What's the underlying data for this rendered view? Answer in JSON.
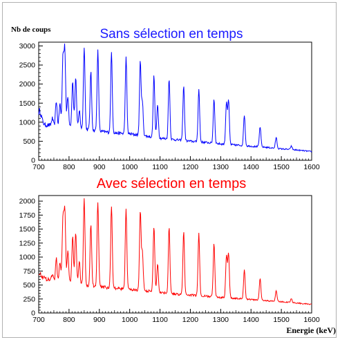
{
  "chart_data": [
    {
      "type": "line",
      "title": "Sans sélection en temps",
      "title_color": "#1a1aff",
      "ylabel": "Nb de coups",
      "xlabel": "",
      "xlim": [
        700,
        1600
      ],
      "ylim": [
        0,
        3100
      ],
      "x_ticks": [
        700,
        800,
        900,
        1000,
        1100,
        1200,
        1300,
        1400,
        1500,
        1600
      ],
      "y_ticks": [
        0,
        500,
        1000,
        1500,
        2000,
        2500,
        3000
      ],
      "grid": false,
      "series": [
        {
          "color": "#0000ff",
          "baseline": [
            [
              700,
              1150
            ],
            [
              720,
              930
            ],
            [
              760,
              900
            ],
            [
              800,
              920
            ],
            [
              850,
              820
            ],
            [
              900,
              760
            ],
            [
              950,
              720
            ],
            [
              1000,
              690
            ],
            [
              1050,
              640
            ],
            [
              1100,
              580
            ],
            [
              1150,
              540
            ],
            [
              1200,
              500
            ],
            [
              1250,
              470
            ],
            [
              1300,
              430
            ],
            [
              1350,
              400
            ],
            [
              1400,
              370
            ],
            [
              1450,
              340
            ],
            [
              1500,
              300
            ],
            [
              1550,
              270
            ],
            [
              1600,
              230
            ]
          ],
          "peaks": [
            [
              703,
              1300
            ],
            [
              709,
              1150
            ],
            [
              745,
              1100
            ],
            [
              758,
              1560
            ],
            [
              770,
              1480
            ],
            [
              780,
              2700
            ],
            [
              786,
              2900
            ],
            [
              796,
              1700
            ],
            [
              812,
              2050
            ],
            [
              822,
              2150
            ],
            [
              834,
              1300
            ],
            [
              850,
              3000
            ],
            [
              872,
              2300
            ],
            [
              895,
              2870
            ],
            [
              940,
              2830
            ],
            [
              988,
              2690
            ],
            [
              1035,
              2600
            ],
            [
              1042,
              1500
            ],
            [
              1080,
              2220
            ],
            [
              1092,
              1470
            ],
            [
              1130,
              2150
            ],
            [
              1178,
              1960
            ],
            [
              1228,
              1860
            ],
            [
              1278,
              1610
            ],
            [
              1319,
              1520
            ],
            [
              1326,
              1560
            ],
            [
              1378,
              1190
            ],
            [
              1430,
              880
            ],
            [
              1483,
              600
            ],
            [
              1533,
              370
            ]
          ]
        }
      ]
    },
    {
      "type": "line",
      "title": "Avec sélection en temps",
      "title_color": "#ff0000",
      "ylabel": "",
      "xlabel": "Energie (keV)",
      "xlim": [
        700,
        1600
      ],
      "ylim": [
        0,
        2100
      ],
      "x_ticks": [
        700,
        800,
        900,
        1000,
        1100,
        1200,
        1300,
        1400,
        1500,
        1600
      ],
      "y_ticks": [
        0,
        250,
        500,
        750,
        1000,
        1250,
        1500,
        1750,
        2000
      ],
      "grid": false,
      "series": [
        {
          "color": "#ff0000",
          "baseline": [
            [
              700,
              700
            ],
            [
              720,
              620
            ],
            [
              760,
              560
            ],
            [
              800,
              560
            ],
            [
              850,
              500
            ],
            [
              900,
              470
            ],
            [
              950,
              440
            ],
            [
              1000,
              420
            ],
            [
              1050,
              400
            ],
            [
              1100,
              370
            ],
            [
              1150,
              340
            ],
            [
              1200,
              320
            ],
            [
              1250,
              300
            ],
            [
              1300,
              280
            ],
            [
              1350,
              260
            ],
            [
              1400,
              240
            ],
            [
              1450,
              220
            ],
            [
              1500,
              200
            ],
            [
              1550,
              180
            ],
            [
              1600,
              150
            ]
          ],
          "peaks": [
            [
              703,
              720
            ],
            [
              745,
              700
            ],
            [
              758,
              970
            ],
            [
              770,
              920
            ],
            [
              780,
              1700
            ],
            [
              786,
              1850
            ],
            [
              796,
              1100
            ],
            [
              812,
              1380
            ],
            [
              822,
              1460
            ],
            [
              834,
              900
            ],
            [
              850,
              2050
            ],
            [
              872,
              1600
            ],
            [
              895,
              2000
            ],
            [
              940,
              1920
            ],
            [
              988,
              1870
            ],
            [
              1035,
              1820
            ],
            [
              1042,
              1080
            ],
            [
              1080,
              1560
            ],
            [
              1092,
              880
            ],
            [
              1130,
              1540
            ],
            [
              1178,
              1450
            ],
            [
              1228,
              1420
            ],
            [
              1278,
              1240
            ],
            [
              1319,
              1030
            ],
            [
              1326,
              1070
            ],
            [
              1378,
              770
            ],
            [
              1430,
              620
            ],
            [
              1483,
              400
            ],
            [
              1533,
              260
            ]
          ]
        }
      ]
    }
  ]
}
